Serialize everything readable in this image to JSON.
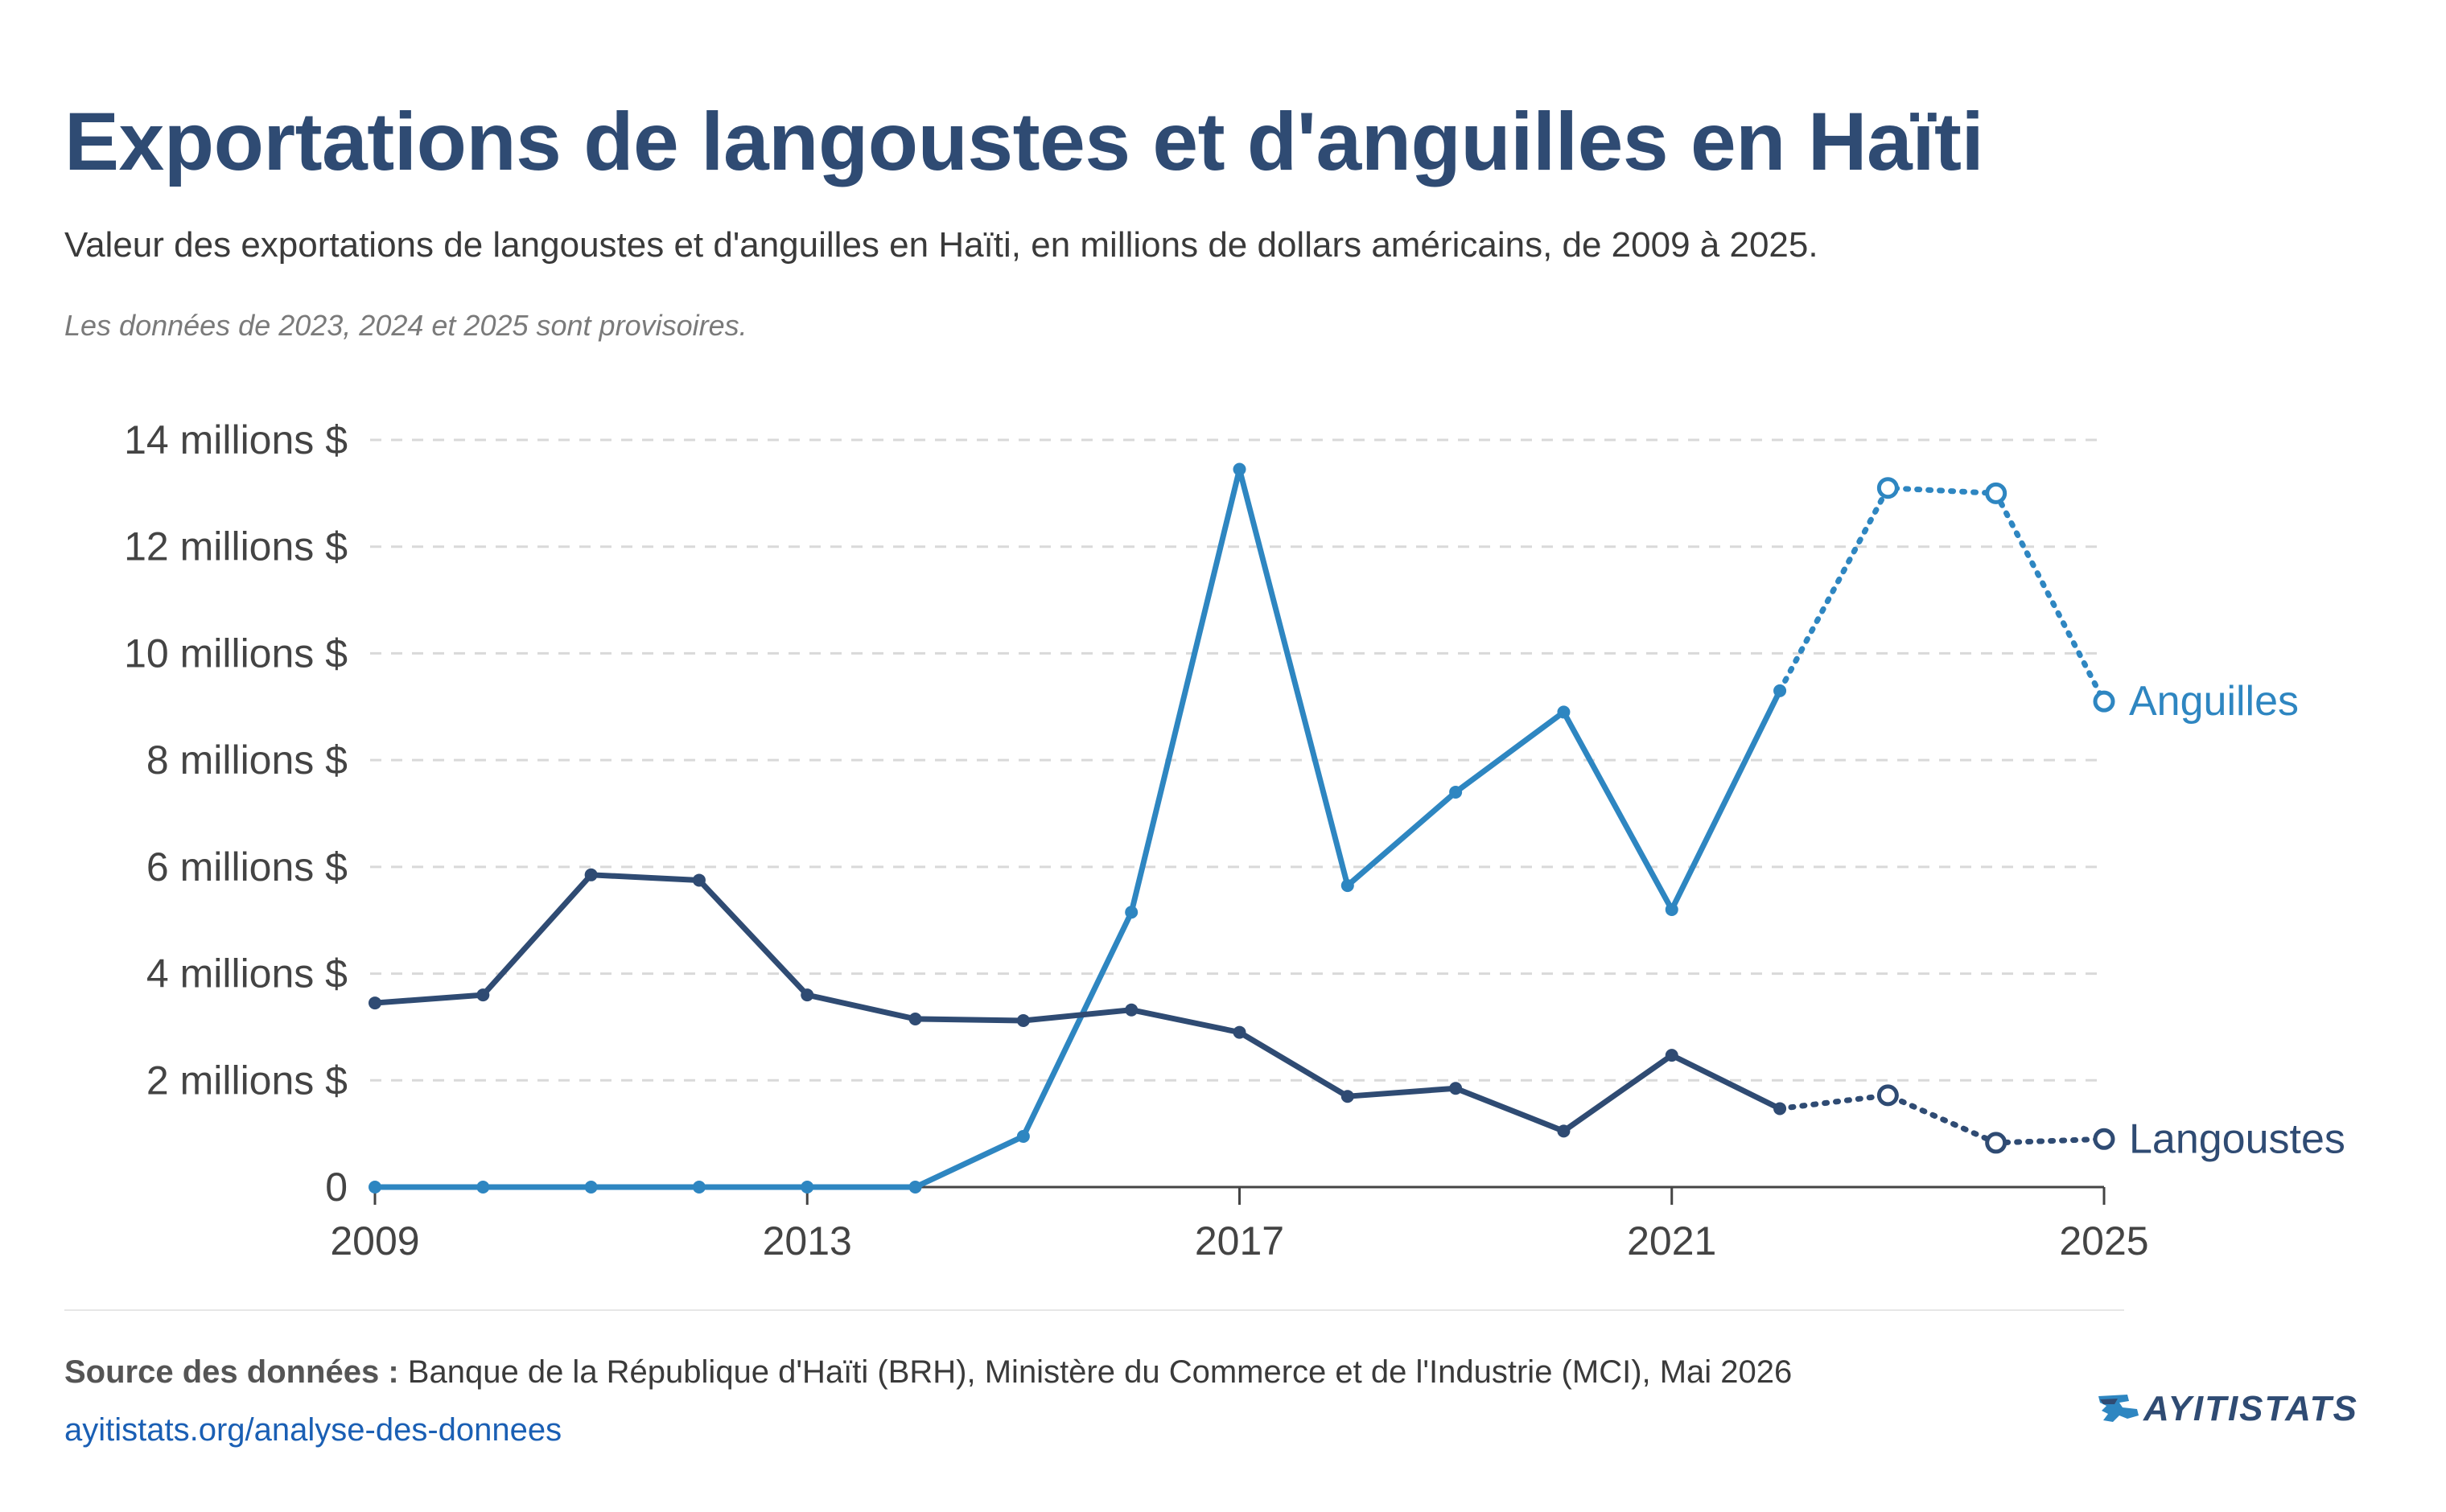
{
  "header": {
    "title": "Exportations de langoustes et d'anguilles en Haïti",
    "subtitle": "Valeur des exportations de langoustes et d'anguilles en Haïti, en millions de dollars américains, de 2009 à 2025.",
    "note": "Les données de 2023, 2024 et 2025 sont provisoires."
  },
  "footer": {
    "source_label": "Source des données :",
    "source_text": "Banque de la République d'Haïti (BRH), Ministère du Commerce et de l'Industrie (MCI), Mai 2026",
    "link": "ayitistats.org/analyse-des-donnees",
    "logo_text": "AYITISTATS"
  },
  "chart_data": {
    "type": "line",
    "x": [
      2009,
      2010,
      2011,
      2012,
      2013,
      2014,
      2015,
      2016,
      2017,
      2018,
      2019,
      2020,
      2021,
      2022,
      2023,
      2024,
      2025
    ],
    "xlim": [
      2009,
      2025
    ],
    "xticks": [
      2009,
      2013,
      2017,
      2021,
      2025
    ],
    "ylim": [
      0,
      14
    ],
    "yticks": [
      0,
      2,
      4,
      6,
      8,
      10,
      12,
      14
    ],
    "ytick_labels": [
      "0",
      "2 millions $",
      "4 millions $",
      "6 millions $",
      "8 millions $",
      "10 millions $",
      "12 millions $",
      "14 millions $"
    ],
    "grid": "horizontal dashed",
    "provisional_from": 2022,
    "provisional_years": [
      2023,
      2024,
      2025
    ],
    "series": [
      {
        "name": "Anguilles",
        "color": "#2e86c1",
        "values": [
          0,
          0,
          0,
          0,
          0,
          0,
          0.95,
          5.15,
          13.45,
          5.65,
          7.4,
          8.9,
          5.2,
          9.3,
          13.1,
          13.0,
          9.1
        ]
      },
      {
        "name": "Langoustes",
        "color": "#2f4b73",
        "values": [
          3.45,
          3.6,
          5.85,
          5.75,
          3.6,
          3.15,
          3.12,
          3.32,
          2.9,
          1.7,
          1.85,
          1.05,
          2.47,
          1.47,
          1.72,
          0.83,
          0.9
        ]
      }
    ]
  }
}
